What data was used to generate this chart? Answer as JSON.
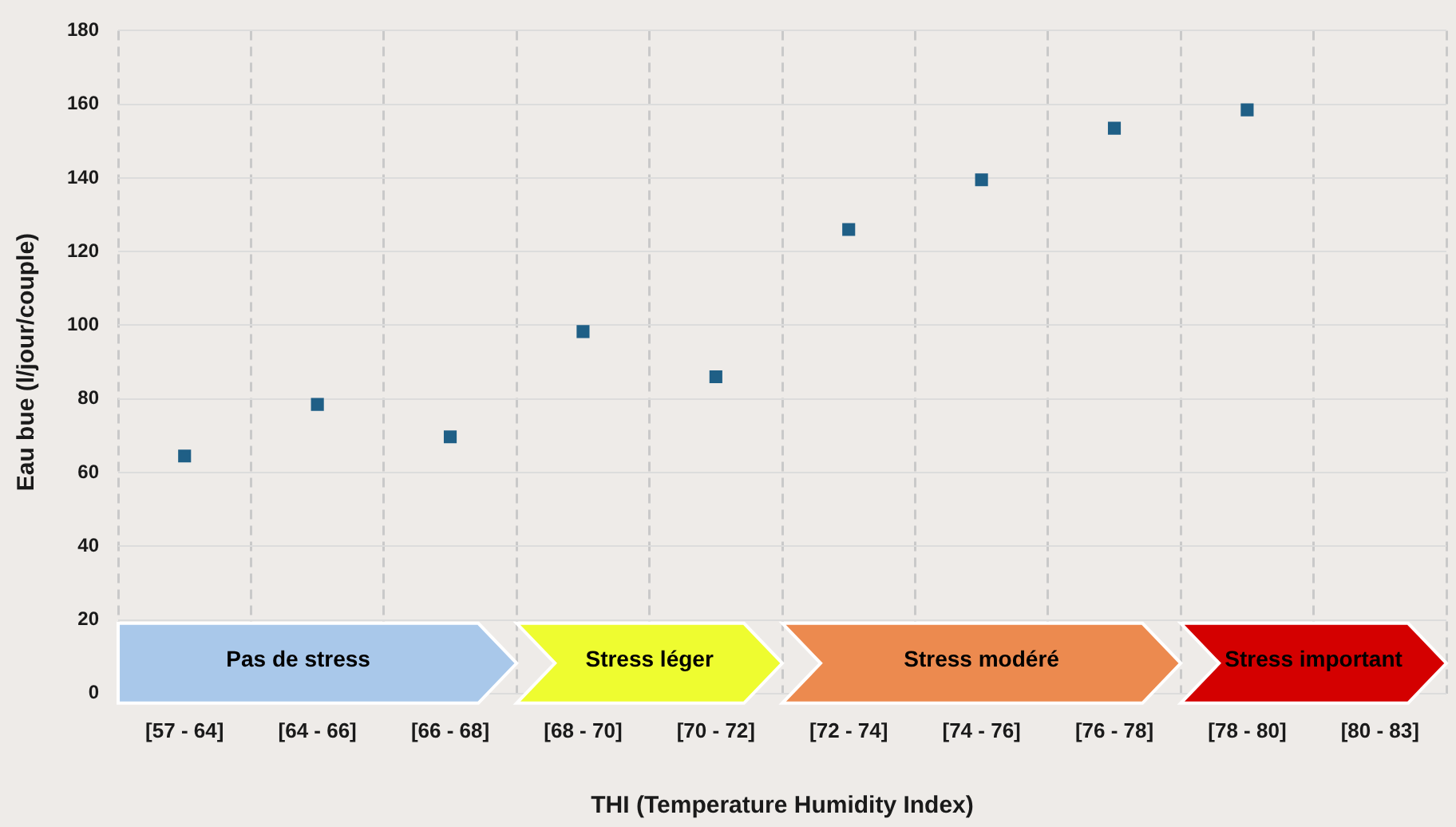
{
  "chart_data": {
    "type": "scatter",
    "xlabel": "THI (Temperature Humidity Index)",
    "ylabel": "Eau bue (l/jour/couple)",
    "categories": [
      "[57 - 64]",
      "[64 - 66]",
      "[66 - 68]",
      "[68 - 70]",
      "[70 - 72]",
      "[72 - 74]",
      "[74 - 76]",
      "[76 - 78]",
      "[78 - 80]",
      "[80 - 83]"
    ],
    "series": [
      {
        "color": "#1f5f86",
        "values": [
          64.5,
          78.5,
          69.7,
          98.3,
          86,
          126,
          139.5,
          153.5,
          158.5,
          null
        ]
      }
    ],
    "ylim": [
      0,
      180
    ],
    "yticks": [
      0,
      20,
      40,
      60,
      80,
      100,
      120,
      140,
      160,
      180
    ],
    "grid": true,
    "legend": false,
    "marker": "square",
    "bands": [
      {
        "axis": "x",
        "from": "[57 - 64]",
        "to": "[66 - 68]",
        "label": "Pas de stress",
        "color": "#a9c8ea"
      },
      {
        "axis": "x",
        "from": "[68 - 70]",
        "to": "[70 - 72]",
        "label": "Stress léger",
        "color": "#eefc30"
      },
      {
        "axis": "x",
        "from": "[72 - 74]",
        "to": "[76 - 78]",
        "label": "Stress modéré",
        "color": "#ec8a4f"
      },
      {
        "axis": "x",
        "from": "[78 - 80]",
        "to": "[80 - 83]",
        "label": "Stress important",
        "color": "#d40000"
      }
    ]
  }
}
